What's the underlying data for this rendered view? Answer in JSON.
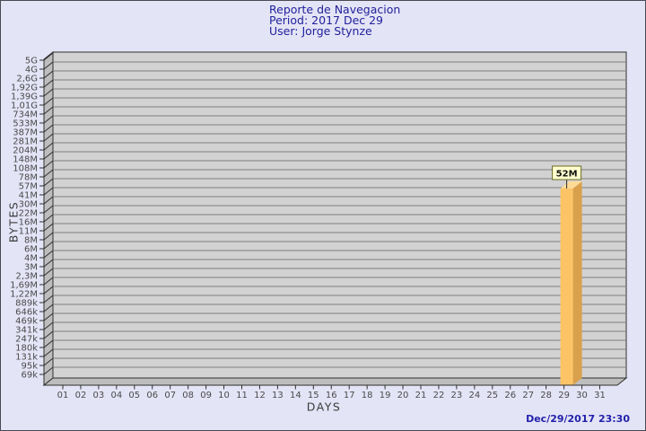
{
  "header": {
    "title": "Reporte de Navegacion",
    "period": "Period: 2017 Dec 29",
    "user": "User: Jorge Stynze"
  },
  "footer": {
    "timestamp": "Dec/29/2017 23:30"
  },
  "chart_data": {
    "type": "bar",
    "title": "Reporte de Navegacion",
    "subtitle": "Period: 2017 Dec 29 — User: Jorge Stynze",
    "xlabel": "DAYS",
    "ylabel": "BYTES",
    "y_scale": "log",
    "grid": "horizontal",
    "legend": "none",
    "style": "3d-bar",
    "y_tick_labels": [
      "5G",
      "4G",
      "2,6G",
      "1,92G",
      "1,39G",
      "1,01G",
      "734M",
      "533M",
      "387M",
      "281M",
      "204M",
      "148M",
      "108M",
      "78M",
      "57M",
      "41M",
      "30M",
      "22M",
      "16M",
      "11M",
      "8M",
      "6M",
      "4M",
      "3M",
      "2,3M",
      "1,69M",
      "1,22M",
      "889k",
      "646k",
      "469k",
      "341k",
      "247k",
      "180k",
      "131k",
      "95k",
      "69k"
    ],
    "y_tick_values": [
      5000000000,
      4000000000,
      2600000000,
      1920000000,
      1390000000,
      1010000000,
      734000000,
      533000000,
      387000000,
      281000000,
      204000000,
      148000000,
      108000000,
      78000000,
      57000000,
      41000000,
      30000000,
      22000000,
      16000000,
      11000000,
      8000000,
      6000000,
      4000000,
      3000000,
      2300000,
      1690000,
      1220000,
      889000,
      646000,
      469000,
      341000,
      247000,
      180000,
      131000,
      95000,
      69000
    ],
    "x_tick_labels": [
      "01",
      "02",
      "03",
      "04",
      "05",
      "06",
      "07",
      "08",
      "09",
      "10",
      "11",
      "12",
      "13",
      "14",
      "15",
      "16",
      "17",
      "18",
      "19",
      "20",
      "21",
      "22",
      "23",
      "24",
      "25",
      "26",
      "27",
      "28",
      "29",
      "30",
      "31"
    ],
    "bars": [
      {
        "day": "29",
        "value_bytes": 52000000,
        "value_label": "52M"
      }
    ]
  },
  "colors": {
    "background": "#E4E4F7",
    "plot_bg": "#D2D2D2",
    "wall": "#BDBDBD",
    "gridline": "#7D7D7D",
    "edge": "#2e2e2e",
    "bar_front": "#FCC466",
    "bar_side": "#D9A14B",
    "bar_top": "#FDDA96",
    "value_box_bg": "#FFFFCF",
    "value_box_border": "#6B6B22",
    "axis_text": "#4A4A4A",
    "title_color": "#22229B",
    "timestamp_color": "#2222AA"
  }
}
